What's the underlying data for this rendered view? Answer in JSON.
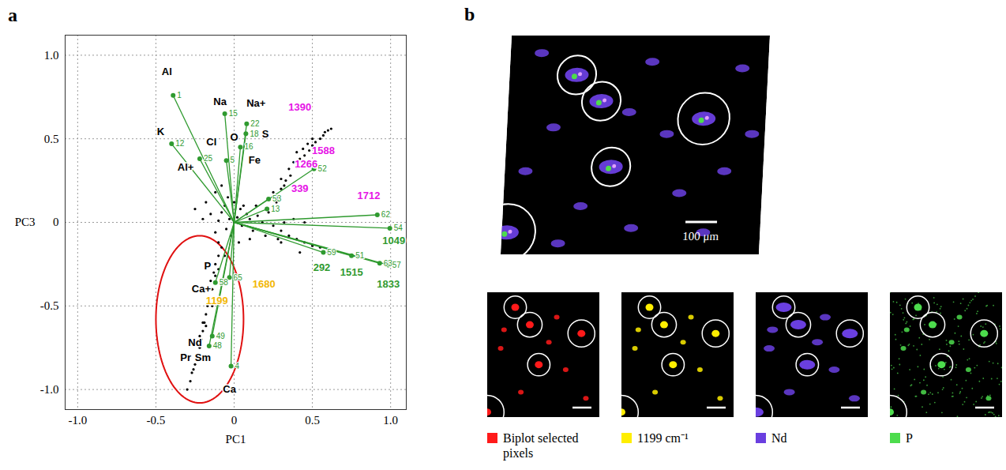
{
  "chart_data": {
    "type": "scatter",
    "panel_label": "a",
    "x_label": "PC1",
    "y_label": "PC3",
    "xlim": [
      -1.08,
      1.1
    ],
    "ylim": [
      -1.12,
      1.12
    ],
    "xticks": [
      {
        "value": -1,
        "label": "-1.0"
      },
      -0.5,
      0,
      0.5,
      {
        "value": 1,
        "label": "1.0"
      }
    ],
    "yticks": [
      {
        "value": -1,
        "label": "-1.0"
      },
      -0.5,
      0,
      0.5,
      {
        "value": 1,
        "label": "1.0"
      }
    ],
    "grid": true,
    "points": {
      "color": "#000000",
      "x": [
        0,
        0.02,
        -0.03,
        0.05,
        -0.05,
        0.08,
        0.1,
        -0.08,
        0.04,
        -0.02,
        0.12,
        0.15,
        -0.1,
        0.06,
        0,
        -0.06,
        0.18,
        0.2,
        0.1,
        -0.12,
        0.03,
        0.22,
        0.14,
        -0.04,
        0.25,
        0.28,
        0.3,
        0.33,
        0.36,
        0.4,
        0.42,
        0.45,
        0.48,
        0.5,
        0.52,
        0.55,
        0.57,
        0.6,
        0.62,
        0.58,
        0.35,
        0.38,
        0.44,
        0.47,
        0.25,
        0.3,
        0.4,
        0.5,
        0.32,
        0.27,
        0.3,
        0.35,
        0.4,
        0.45,
        0.5,
        0.55,
        0.6,
        0.32,
        0.38,
        0.45,
        0.3,
        0.42,
        0.28,
        -0.15,
        -0.2,
        -0.18,
        -0.12,
        -0.08,
        -0.25,
        -0.1,
        -0.08,
        -0.1,
        -0.12,
        -0.13,
        -0.15,
        -0.14,
        -0.16,
        -0.17,
        -0.18,
        -0.19,
        -0.2,
        -0.21,
        -0.22,
        -0.24,
        -0.25,
        -0.27,
        -0.28,
        -0.3,
        -0.12,
        -0.1,
        -0.16,
        -0.2,
        -0.23,
        -0.26,
        -0.18,
        -0.06,
        -0.14,
        -0.22
      ],
      "y": [
        0,
        0.03,
        0.02,
        -0.02,
        -0.04,
        0.05,
        0.02,
        0.06,
        0.08,
        -0.08,
        -0.05,
        0.04,
        0.01,
        0.1,
        0.12,
        0.1,
        0,
        -0.08,
        -0.1,
        -0.06,
        -0.12,
        0.06,
        0.1,
        0.15,
        -0.02,
        0.15,
        0.2,
        0.25,
        0.28,
        0.33,
        0.38,
        0.4,
        0.43,
        0.46,
        0.48,
        0.5,
        0.52,
        0.55,
        0.56,
        0.54,
        0.32,
        0.36,
        0.44,
        0.47,
        0.18,
        0.26,
        0.42,
        0.5,
        0.22,
        0.12,
        -0.05,
        -0.08,
        -0.1,
        -0.12,
        -0.14,
        -0.15,
        -0.18,
        0,
        0.02,
        0,
        -0.12,
        -0.18,
        -0.1,
        0.05,
        0.02,
        0.12,
        0.18,
        0.22,
        0.08,
        -0.12,
        -0.15,
        -0.2,
        -0.25,
        -0.3,
        -0.35,
        -0.4,
        -0.45,
        -0.5,
        -0.55,
        -0.6,
        -0.65,
        -0.7,
        -0.75,
        -0.8,
        -0.85,
        -0.9,
        -0.95,
        -1,
        -0.32,
        -0.28,
        -0.4,
        -0.6,
        -0.72,
        -0.88,
        -0.62,
        -0.2,
        -0.5,
        -0.68
      ]
    },
    "vector_color": "#2f9a2f",
    "vector_origin": [
      0,
      0
    ],
    "vectors": [
      {
        "label": "1",
        "x": -0.39,
        "y": 0.76
      },
      {
        "label": "12",
        "x": -0.4,
        "y": 0.47
      },
      {
        "label": "25",
        "x": -0.22,
        "y": 0.38
      },
      {
        "label": "15",
        "x": -0.06,
        "y": 0.65
      },
      {
        "label": "5",
        "x": -0.05,
        "y": 0.37
      },
      {
        "label": "22",
        "x": 0.08,
        "y": 0.59
      },
      {
        "label": "18",
        "x": 0.075,
        "y": 0.53
      },
      {
        "label": "16",
        "x": 0.04,
        "y": 0.45
      },
      {
        "label": "52",
        "x": 0.51,
        "y": 0.32
      },
      {
        "label": "53",
        "x": 0.22,
        "y": 0.14
      },
      {
        "label": "13",
        "x": 0.21,
        "y": 0.08
      },
      {
        "label": "62",
        "x": 0.915,
        "y": 0.045
      },
      {
        "label": "54",
        "x": 0.995,
        "y": -0.035
      },
      {
        "label": "63",
        "x": 0.93,
        "y": -0.245
      },
      {
        "label": "57",
        "x": 0.985,
        "y": -0.255
      },
      {
        "label": "51",
        "x": 0.75,
        "y": -0.2
      },
      {
        "label": "59",
        "x": 0.57,
        "y": -0.18
      },
      {
        "label": "58",
        "x": -0.12,
        "y": -0.36
      },
      {
        "label": "65",
        "x": -0.03,
        "y": -0.33
      },
      {
        "label": "49",
        "x": -0.14,
        "y": -0.68
      },
      {
        "label": "48",
        "x": -0.16,
        "y": -0.74
      },
      {
        "label": "4",
        "x": -0.02,
        "y": -0.86
      }
    ],
    "annotations": [
      {
        "text": "Al",
        "x": -0.43,
        "y": 0.9,
        "color": "#000000"
      },
      {
        "text": "K",
        "x": -0.47,
        "y": 0.54,
        "color": "#000000"
      },
      {
        "text": "Al+",
        "x": -0.31,
        "y": 0.33,
        "color": "#000000"
      },
      {
        "text": "Na",
        "x": -0.09,
        "y": 0.72,
        "color": "#000000"
      },
      {
        "text": "Na+",
        "x": 0.14,
        "y": 0.71,
        "color": "#000000"
      },
      {
        "text": "Cl",
        "x": -0.145,
        "y": 0.48,
        "color": "#000000"
      },
      {
        "text": "O",
        "x": 0.0,
        "y": 0.51,
        "color": "#000000"
      },
      {
        "text": "S",
        "x": 0.2,
        "y": 0.53,
        "color": "#000000"
      },
      {
        "text": "Fe",
        "x": 0.13,
        "y": 0.37,
        "color": "#000000"
      },
      {
        "text": "1390",
        "x": 0.42,
        "y": 0.69,
        "color": "#e614e6"
      },
      {
        "text": "1588",
        "x": 0.57,
        "y": 0.43,
        "color": "#e614e6"
      },
      {
        "text": "1266",
        "x": 0.46,
        "y": 0.35,
        "color": "#e614e6"
      },
      {
        "text": "339",
        "x": 0.42,
        "y": 0.2,
        "color": "#e614e6"
      },
      {
        "text": "1712",
        "x": 0.86,
        "y": 0.16,
        "color": "#e614e6"
      },
      {
        "text": "1049",
        "x": 1.02,
        "y": -0.11,
        "color": "#2f9a2f"
      },
      {
        "text": "1833",
        "x": 0.985,
        "y": -0.37,
        "color": "#2f9a2f"
      },
      {
        "text": "1515",
        "x": 0.75,
        "y": -0.3,
        "color": "#2f9a2f"
      },
      {
        "text": "292",
        "x": 0.56,
        "y": -0.27,
        "color": "#2f9a2f"
      },
      {
        "text": "P",
        "x": -0.17,
        "y": -0.26,
        "color": "#000000"
      },
      {
        "text": "Ca+",
        "x": -0.21,
        "y": -0.4,
        "color": "#000000"
      },
      {
        "text": "1199",
        "x": -0.11,
        "y": -0.47,
        "color": "#f2b705"
      },
      {
        "text": "1680",
        "x": 0.19,
        "y": -0.37,
        "color": "#f2b705"
      },
      {
        "text": "Nd",
        "x": -0.25,
        "y": -0.72,
        "color": "#000000"
      },
      {
        "text": "Pr",
        "x": -0.31,
        "y": -0.81,
        "color": "#000000"
      },
      {
        "text": "Sm",
        "x": -0.2,
        "y": -0.81,
        "color": "#000000"
      },
      {
        "text": "Ca",
        "x": -0.03,
        "y": -1.0,
        "color": "#000000"
      }
    ],
    "ellipse": {
      "cx": -0.22,
      "cy": -0.58,
      "rx": 0.28,
      "ry": 0.5,
      "color": "#e01010"
    }
  },
  "image_panel": {
    "panel_label": "b",
    "scale_bar_label": "100 μm",
    "channels": [
      {
        "label": "Biplot selected pixels",
        "color": "#ff1a1a"
      },
      {
        "label": "1199 cm⁻¹",
        "color": "#ffee00"
      },
      {
        "label": "Nd",
        "color": "#6a3fe0"
      },
      {
        "label": "P",
        "color": "#4ddc4d"
      }
    ]
  }
}
